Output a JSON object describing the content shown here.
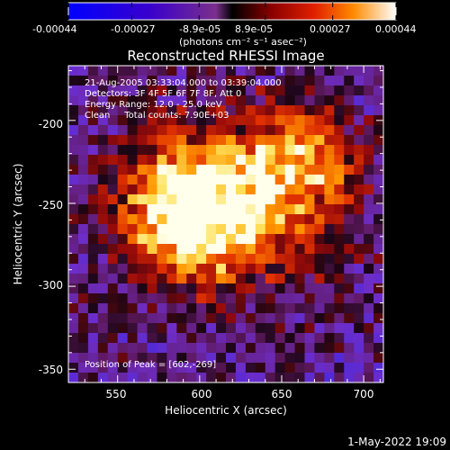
{
  "colorbar": {
    "tick_labels": [
      "-0.00044",
      "-0.00027",
      "-8.9e-05",
      "8.9e-05",
      "0.00027",
      "0.00044"
    ],
    "units_label": "(photons cm⁻² s⁻¹ asec⁻²)",
    "range": [
      -0.00044,
      0.00044
    ]
  },
  "chart_data": {
    "type": "heatmap",
    "title": "Reconstructed RHESSI Image",
    "xlabel": "Heliocentric X (arcsec)",
    "ylabel": "Heliocentric Y (arcsec)",
    "x_ticks": [
      "550",
      "600",
      "650",
      "700"
    ],
    "y_ticks": [
      "-200",
      "-250",
      "-300",
      "-350"
    ],
    "xlim": [
      520,
      712
    ],
    "ylim": [
      -358,
      -167
    ],
    "annotations": [
      "21-Aug-2005 03:33:04.000 to 03:39:04.000",
      "Detectors: 3F 4F 5F 6F 7F 8F, Att 0",
      "Energy Range: 12.0 - 25.0 keV",
      "Clean     Total counts: 7.90E+03"
    ],
    "peak_label": "Position of Peak = [602,-269]",
    "sources": [
      {
        "x": 595,
        "y": -250,
        "peak_fraction": 1.0
      },
      {
        "x": 660,
        "y": -225,
        "peak_fraction": 0.7
      }
    ]
  },
  "footer": {
    "timestamp": "1-May-2022 19:09"
  }
}
